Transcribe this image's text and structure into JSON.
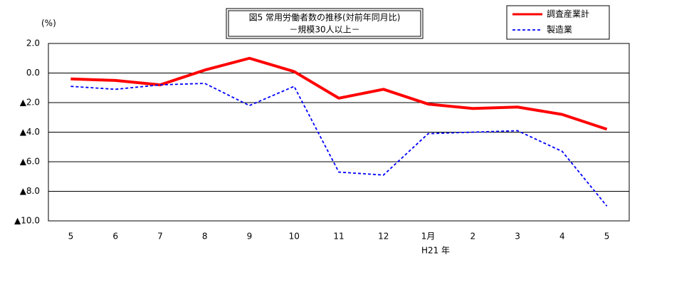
{
  "chart_data": {
    "type": "line",
    "title": "図5 常用労働者数の推移(対前年同月比)",
    "subtitle": "－規模30人以上－",
    "y_label": "(%)",
    "x_annotation": "H21 年",
    "categories": [
      "5",
      "6",
      "7",
      "8",
      "9",
      "10",
      "11",
      "12",
      "1月",
      "2",
      "3",
      "4",
      "5"
    ],
    "series": [
      {
        "name": "調査産業計",
        "color": "#ff0000",
        "values": [
          -0.4,
          -0.5,
          -0.8,
          0.2,
          1.0,
          0.1,
          -1.7,
          -1.1,
          -2.1,
          -2.4,
          -2.3,
          -2.8,
          -3.8
        ]
      },
      {
        "name": "製造業",
        "color": "#0000ff",
        "values": [
          -0.9,
          -1.1,
          -0.8,
          -0.7,
          -2.2,
          -0.9,
          -6.7,
          -6.9,
          -4.1,
          -4.0,
          -3.9,
          -5.3,
          -9.0
        ]
      }
    ],
    "ylim": [
      -10,
      2
    ],
    "yticks": [
      {
        "value": 2,
        "label": "2.0"
      },
      {
        "value": 0,
        "label": "0.0"
      },
      {
        "value": -2,
        "label": "▲2.0"
      },
      {
        "value": -4,
        "label": "▲4.0"
      },
      {
        "value": -6,
        "label": "▲6.0"
      },
      {
        "value": -8,
        "label": "▲8.0"
      },
      {
        "value": -10,
        "label": "▲10.0"
      }
    ],
    "grid": true
  }
}
